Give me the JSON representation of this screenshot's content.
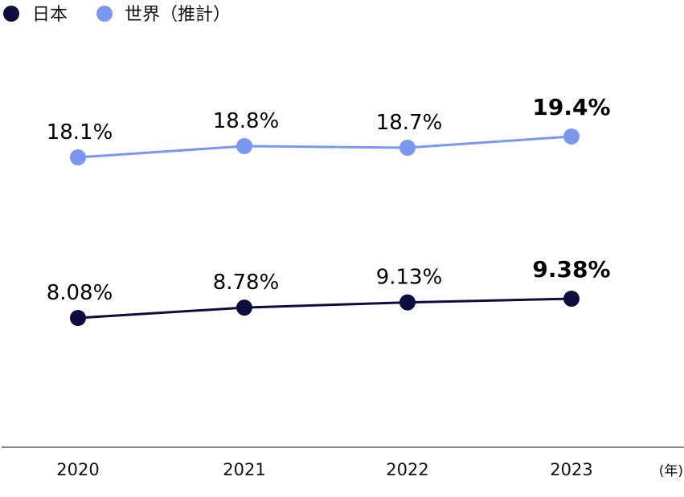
{
  "chart_data": {
    "type": "line",
    "title": "",
    "xlabel": "",
    "ylabel": "",
    "x_unit": "(年)",
    "categories": [
      "2020",
      "2021",
      "2022",
      "2023"
    ],
    "ylim": [
      0,
      25
    ],
    "grid": false,
    "legend_position": "top-left",
    "series": [
      {
        "name": "日本",
        "color": "#0d0c3f",
        "values": [
          8.08,
          8.78,
          9.13,
          9.38
        ],
        "labels": [
          "8.08%",
          "8.78%",
          "9.13%",
          "9.38%"
        ]
      },
      {
        "name": "世界（推計）",
        "color": "#7b97f0",
        "values": [
          18.1,
          18.8,
          18.7,
          19.4
        ],
        "labels": [
          "18.1%",
          "18.8%",
          "18.7%",
          "19.4%"
        ]
      }
    ],
    "highlight_last_label": true,
    "axis_color": "#888888"
  }
}
